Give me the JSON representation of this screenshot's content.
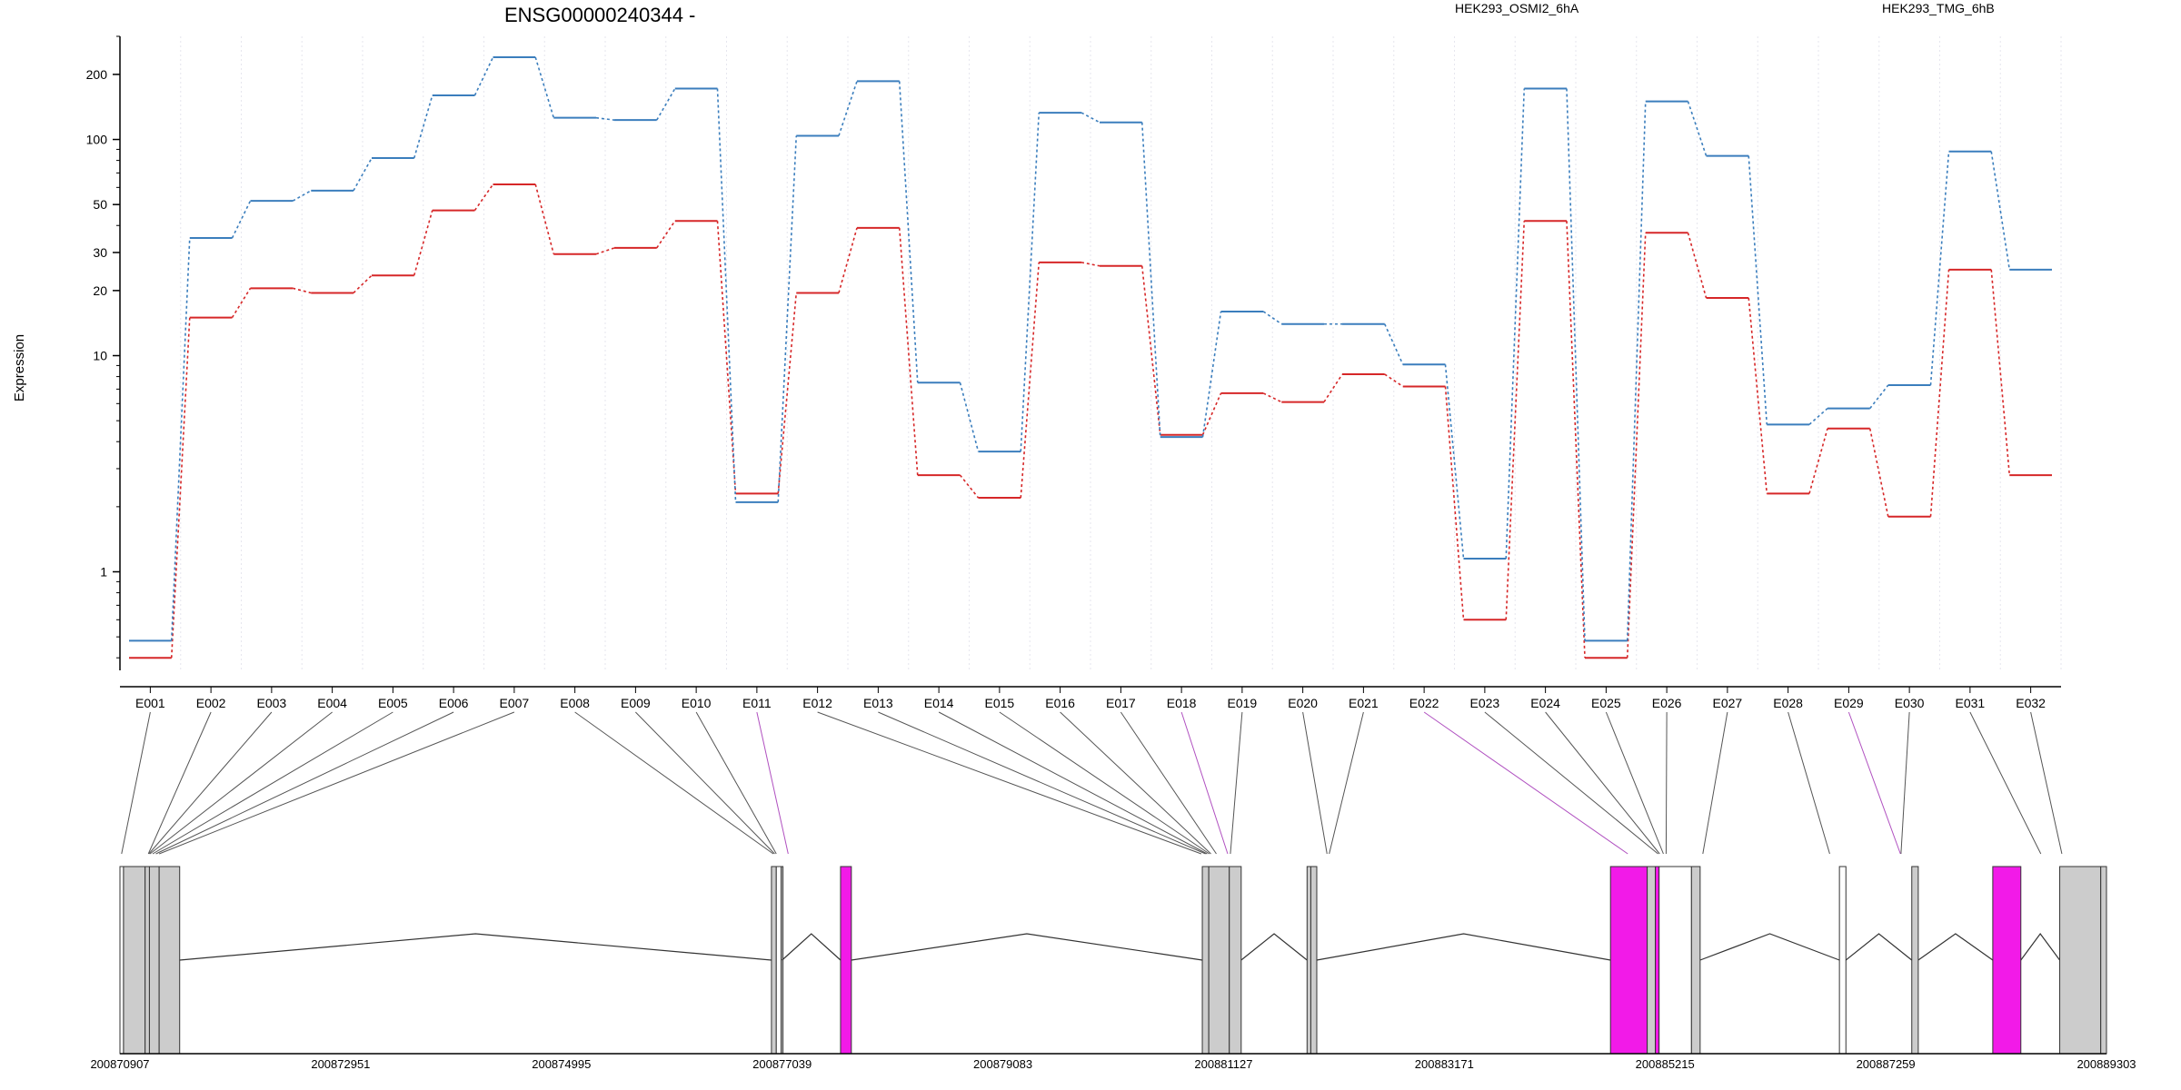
{
  "chart_data": {
    "type": "line",
    "title": "ENSG00000240344 -",
    "ylabel": "Expression",
    "y_scale": "log",
    "ylim": [
      0.35,
      300
    ],
    "yticks": [
      1,
      10,
      20,
      30,
      50,
      100,
      200
    ],
    "categories": [
      "E001",
      "E002",
      "E003",
      "E004",
      "E005",
      "E006",
      "E007",
      "E008",
      "E009",
      "E010",
      "E011",
      "E012",
      "E013",
      "E014",
      "E015",
      "E016",
      "E017",
      "E018",
      "E019",
      "E020",
      "E021",
      "E022",
      "E023",
      "E024",
      "E025",
      "E026",
      "E027",
      "E028",
      "E029",
      "E030",
      "E031",
      "E032"
    ],
    "series": [
      {
        "name": "HEK293_OSMI2_6hA",
        "color": "#d62728",
        "values": [
          0.4,
          15,
          20.5,
          19.5,
          23.5,
          47,
          62,
          29.5,
          31.5,
          42,
          2.3,
          19.5,
          39,
          2.8,
          2.2,
          27,
          26,
          4.3,
          6.7,
          6.1,
          8.2,
          7.2,
          0.6,
          42,
          0.4,
          37,
          18.5,
          2.3,
          4.6,
          1.8,
          25,
          2.8
        ]
      },
      {
        "name": "HEK293_TMG_6hB",
        "color": "#3b7ebd",
        "values": [
          0.48,
          35,
          52,
          58,
          82,
          160,
          240,
          126,
          123,
          172,
          2.1,
          104,
          186,
          7.5,
          3.6,
          133,
          120,
          4.2,
          16,
          14,
          14,
          9.1,
          1.15,
          172,
          0.48,
          150,
          84,
          4.8,
          5.7,
          7.3,
          88,
          25
        ]
      }
    ]
  },
  "gene_model": {
    "coordinate_labels": [
      "200870907",
      "200872951",
      "200874995",
      "200877039",
      "200879083",
      "200881127",
      "200883171",
      "200885215",
      "200887259",
      "200889303"
    ],
    "exon_fill": "#cccccc",
    "highlight_fill": "#f21ae8",
    "highlight_link_color": "#b050c0"
  }
}
